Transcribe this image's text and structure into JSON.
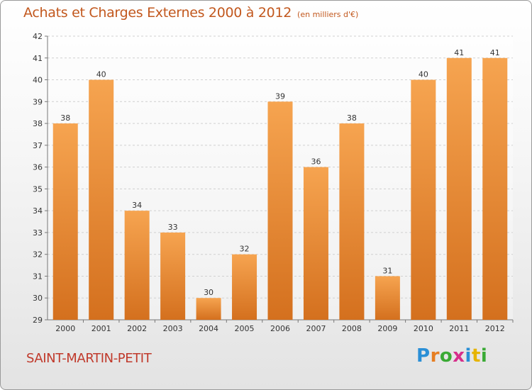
{
  "header": {
    "title": "Achats et Charges Externes 2000 à 2012",
    "subtitle": "(en milliers d'€)"
  },
  "footer": {
    "location": "SAINT-MARTIN-PETIT",
    "logo_letters": [
      "P",
      "r",
      "o",
      "x",
      "i",
      "t",
      "i"
    ],
    "logo_colors": [
      "#2a8fd6",
      "#e67e22",
      "#3aaa35",
      "#d62f8b",
      "#2a8fd6",
      "#e6b400",
      "#3aaa35"
    ]
  },
  "colors": {
    "bar_light": "#f6a450",
    "bar_dark": "#d4701e",
    "title": "#c2581e",
    "location": "#c0392b"
  },
  "chart_data": {
    "type": "bar",
    "categories": [
      "2000",
      "2001",
      "2002",
      "2003",
      "2004",
      "2005",
      "2006",
      "2007",
      "2008",
      "2009",
      "2010",
      "2011",
      "2012"
    ],
    "values": [
      38,
      40,
      34,
      33,
      30,
      32,
      39,
      36,
      38,
      31,
      40,
      41,
      41
    ],
    "data_labels": [
      "38",
      "40",
      "34",
      "33",
      "30",
      "32",
      "39",
      "36",
      "38",
      "31",
      "40",
      "41",
      "41"
    ],
    "yticks": [
      29,
      30,
      31,
      32,
      33,
      34,
      35,
      36,
      37,
      38,
      39,
      40,
      41,
      42
    ],
    "ylim": [
      29,
      42
    ],
    "grid": true,
    "title": "Achats et Charges Externes 2000 à 2012",
    "xlabel": "",
    "ylabel": ""
  }
}
